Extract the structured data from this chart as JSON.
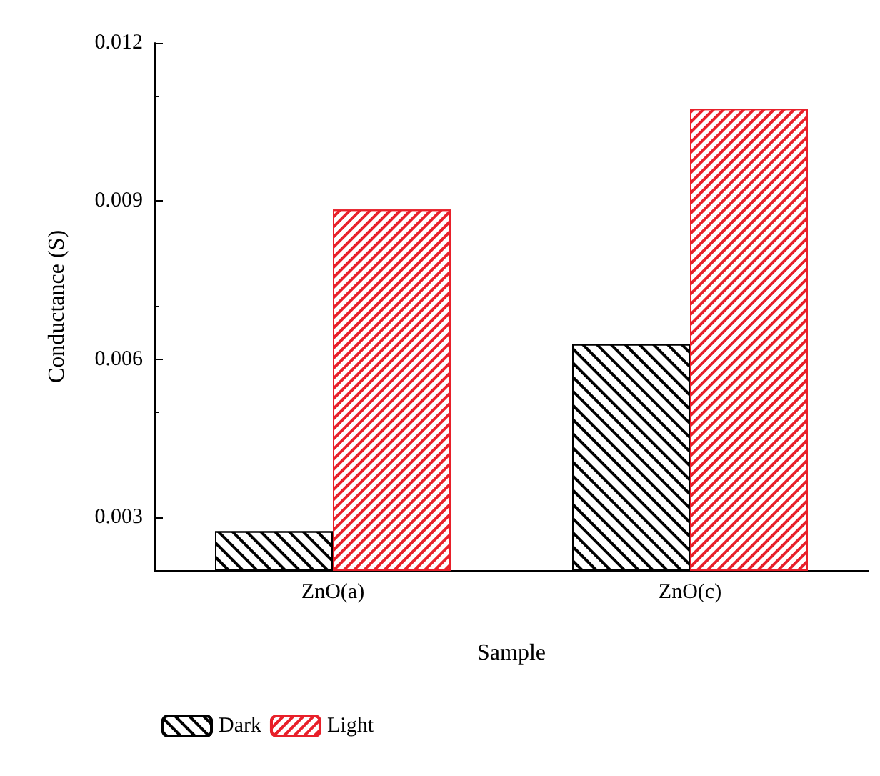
{
  "chart_data": {
    "type": "bar",
    "xlabel": "Sample",
    "ylabel": "Conductance (S)",
    "categories": [
      "ZnO(a)",
      "ZnO(c)"
    ],
    "series": [
      {
        "name": "Dark",
        "color": "#000000",
        "values": [
          0.00274,
          0.00629
        ]
      },
      {
        "name": "Light",
        "color": "#e8202a",
        "values": [
          0.00884,
          0.01075
        ]
      }
    ],
    "ylim": [
      0.002,
      0.012
    ],
    "yticks": [
      0.003,
      0.006,
      0.009,
      0.012
    ],
    "legend": "bottom left",
    "grid": false
  }
}
